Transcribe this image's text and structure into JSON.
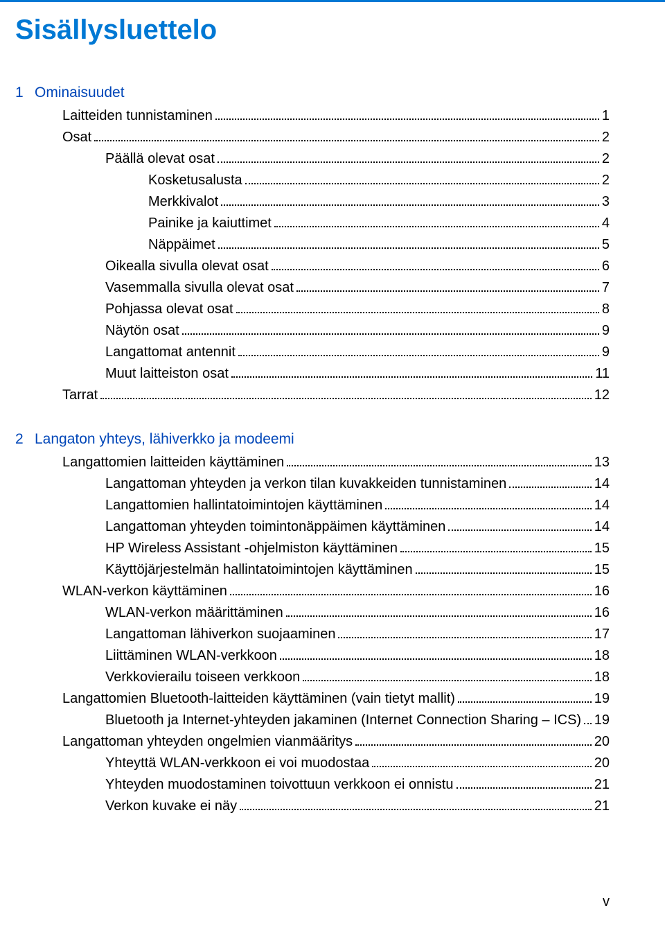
{
  "colors": {
    "accent_blue": "#0078d4",
    "chapter_blue": "#0046b8",
    "text": "#000000",
    "background": "#ffffff",
    "leader": "#000000"
  },
  "typography": {
    "title_fontsize": 40,
    "chapter_fontsize": 21,
    "body_fontsize": 20,
    "footer_fontsize": 20,
    "line_height": 1.55
  },
  "page_title": "Sisällysluettelo",
  "footer_page_number": "v",
  "chapters": [
    {
      "number": "1",
      "title": "Ominaisuudet",
      "entries": [
        {
          "level": 1,
          "label": "Laitteiden tunnistaminen",
          "page": "1"
        },
        {
          "level": 1,
          "label": "Osat",
          "page": "2"
        },
        {
          "level": 2,
          "label": "Päällä olevat osat",
          "page": "2"
        },
        {
          "level": 3,
          "label": "Kosketusalusta",
          "page": "2"
        },
        {
          "level": 3,
          "label": "Merkkivalot",
          "page": "3"
        },
        {
          "level": 3,
          "label": "Painike ja kaiuttimet",
          "page": "4"
        },
        {
          "level": 3,
          "label": "Näppäimet",
          "page": "5"
        },
        {
          "level": 2,
          "label": "Oikealla sivulla olevat osat",
          "page": "6"
        },
        {
          "level": 2,
          "label": "Vasemmalla sivulla olevat osat",
          "page": "7"
        },
        {
          "level": 2,
          "label": "Pohjassa olevat osat",
          "page": "8"
        },
        {
          "level": 2,
          "label": "Näytön osat",
          "page": "9"
        },
        {
          "level": 2,
          "label": "Langattomat antennit",
          "page": "9"
        },
        {
          "level": 2,
          "label": "Muut laitteiston osat",
          "page": "11"
        },
        {
          "level": 1,
          "label": "Tarrat",
          "page": "12"
        }
      ]
    },
    {
      "number": "2",
      "title": "Langaton yhteys, lähiverkko ja modeemi",
      "entries": [
        {
          "level": 1,
          "label": "Langattomien laitteiden käyttäminen",
          "page": "13"
        },
        {
          "level": 2,
          "label": "Langattoman yhteyden ja verkon tilan kuvakkeiden tunnistaminen",
          "page": "14"
        },
        {
          "level": 2,
          "label": "Langattomien hallintatoimintojen käyttäminen",
          "page": "14"
        },
        {
          "level": 2,
          "label": "Langattoman yhteyden toimintonäppäimen käyttäminen",
          "page": "14"
        },
        {
          "level": 2,
          "label": "HP Wireless Assistant -ohjelmiston käyttäminen",
          "page": "15"
        },
        {
          "level": 2,
          "label": "Käyttöjärjestelmän hallintatoimintojen käyttäminen",
          "page": "15"
        },
        {
          "level": 1,
          "label": "WLAN-verkon käyttäminen",
          "page": "16"
        },
        {
          "level": 2,
          "label": "WLAN-verkon määrittäminen",
          "page": "16"
        },
        {
          "level": 2,
          "label": "Langattoman lähiverkon suojaaminen",
          "page": "17"
        },
        {
          "level": 2,
          "label": "Liittäminen WLAN-verkkoon",
          "page": "18"
        },
        {
          "level": 2,
          "label": "Verkkovierailu toiseen verkkoon",
          "page": "18"
        },
        {
          "level": 1,
          "label": "Langattomien Bluetooth-laitteiden käyttäminen (vain tietyt mallit)",
          "page": "19"
        },
        {
          "level": 2,
          "label": "Bluetooth ja Internet-yhteyden jakaminen (Internet Connection Sharing – ICS)",
          "page": "19"
        },
        {
          "level": 1,
          "label": "Langattoman yhteyden ongelmien vianmääritys",
          "page": "20"
        },
        {
          "level": 2,
          "label": "Yhteyttä WLAN-verkkoon ei voi muodostaa",
          "page": "20"
        },
        {
          "level": 2,
          "label": "Yhteyden muodostaminen toivottuun verkkoon ei onnistu",
          "page": "21"
        },
        {
          "level": 2,
          "label": "Verkon kuvake ei näy",
          "page": "21"
        }
      ]
    }
  ]
}
